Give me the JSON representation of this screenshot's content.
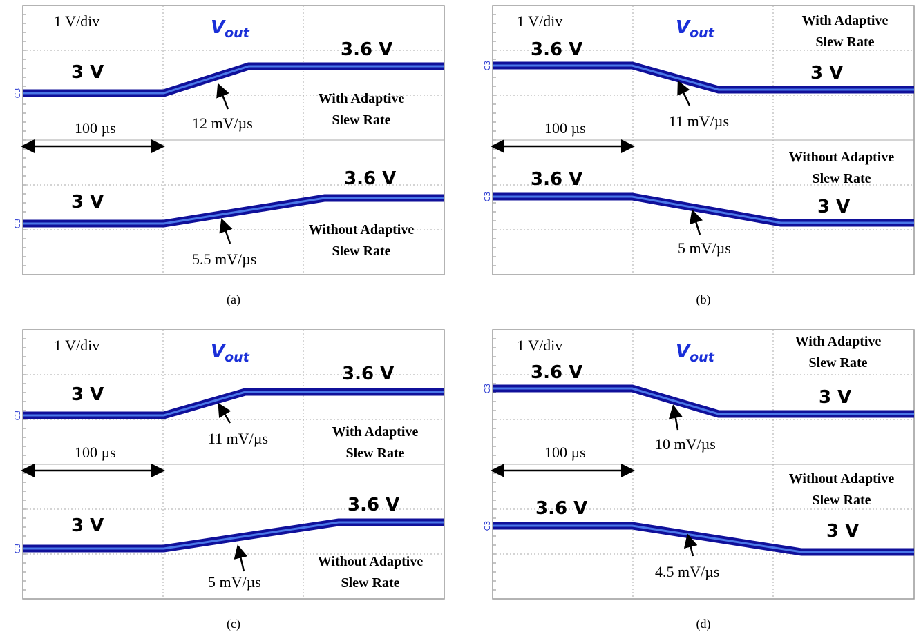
{
  "panels": [
    {
      "caption": "(a)",
      "scale": "1 V/div",
      "vout": {
        "main": "V",
        "sub": "out"
      },
      "time": "100 µs",
      "traces": [
        {
          "channel": "C3",
          "start": "3 V",
          "end": "3.6 V",
          "slew": "12 mV/µs",
          "mode": [
            "With Adaptive",
            "Slew Rate"
          ]
        },
        {
          "channel": "C3",
          "start": "3 V",
          "end": "3.6 V",
          "slew": "5.5 mV/µs",
          "mode": [
            "Without Adaptive",
            "Slew Rate"
          ]
        }
      ]
    },
    {
      "caption": "(b)",
      "scale": "1 V/div",
      "vout": {
        "main": "V",
        "sub": "out"
      },
      "time": "100 µs",
      "traces": [
        {
          "channel": "C3",
          "start": "3.6 V",
          "end": "3 V",
          "slew": "11 mV/µs",
          "mode": [
            "With Adaptive",
            "Slew Rate"
          ]
        },
        {
          "channel": "C3",
          "start": "3.6 V",
          "end": "3 V",
          "slew": "5 mV/µs",
          "mode": [
            "Without Adaptive",
            "Slew Rate"
          ]
        }
      ]
    },
    {
      "caption": "(c)",
      "scale": "1 V/div",
      "vout": {
        "main": "V",
        "sub": "out"
      },
      "time": "100 µs",
      "traces": [
        {
          "channel": "C3",
          "start": "3 V",
          "end": "3.6 V",
          "slew": "11 mV/µs",
          "mode": [
            "With Adaptive",
            "Slew Rate"
          ]
        },
        {
          "channel": "C3",
          "start": "3 V",
          "end": "3.6 V",
          "slew": "5 mV/µs",
          "mode": [
            "Without Adaptive",
            "Slew Rate"
          ]
        }
      ]
    },
    {
      "caption": "(d)",
      "scale": "1 V/div",
      "vout": {
        "main": "V",
        "sub": "out"
      },
      "time": "100 µs",
      "traces": [
        {
          "channel": "C3",
          "start": "3.6 V",
          "end": "3 V",
          "slew": "10 mV/µs",
          "mode": [
            "With Adaptive",
            "Slew Rate"
          ]
        },
        {
          "channel": "C3",
          "start": "3.6 V",
          "end": "3 V",
          "slew": "4.5 mV/µs",
          "mode": [
            "Without Adaptive",
            "Slew Rate"
          ]
        }
      ]
    }
  ]
}
